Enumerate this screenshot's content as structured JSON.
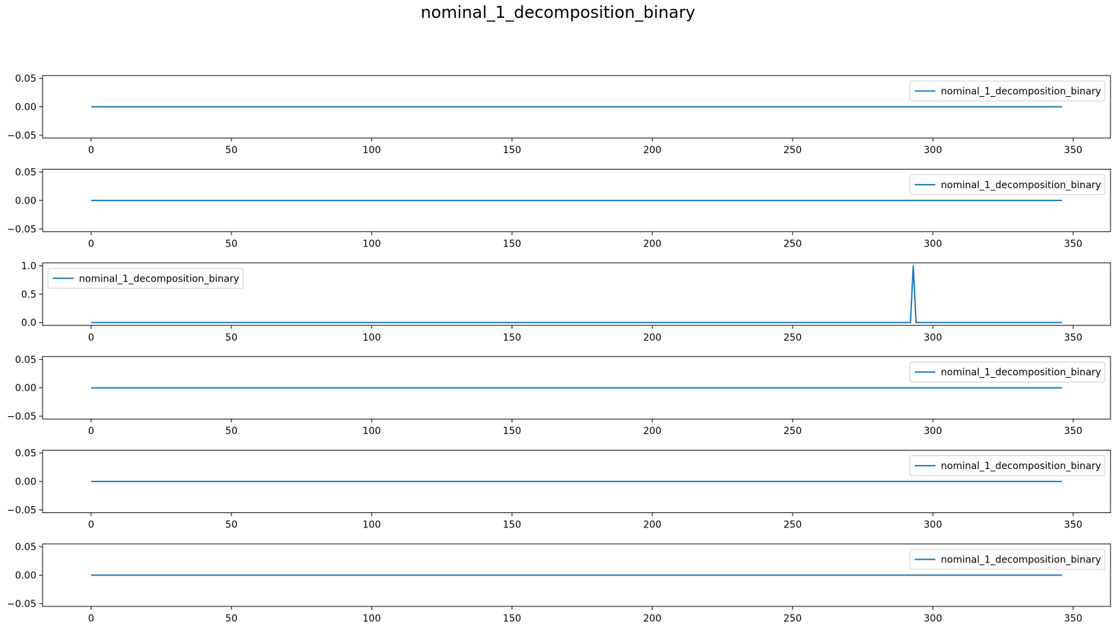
{
  "title": "nominal_1_decomposition_binary",
  "colors": {
    "line": "#1f77b4",
    "axes": "#000000",
    "background": "#ffffff"
  },
  "chart_data": [
    {
      "type": "line",
      "legend": "top-right",
      "grid": false,
      "xlim": [
        -17.3,
        363.3
      ],
      "ylim": [
        -0.055,
        0.055
      ],
      "xticks": [
        0,
        50,
        100,
        150,
        200,
        250,
        300,
        350
      ],
      "yticks": [
        -0.05,
        0.0,
        0.05
      ],
      "ytick_labels": [
        "−0.05",
        "0.00",
        "0.05"
      ],
      "series": [
        {
          "name": "nominal_1_decomposition_binary",
          "x": [
            0,
            346
          ],
          "y": [
            0,
            0
          ]
        }
      ]
    },
    {
      "type": "line",
      "legend": "top-right",
      "grid": false,
      "xlim": [
        -17.3,
        363.3
      ],
      "ylim": [
        -0.055,
        0.055
      ],
      "xticks": [
        0,
        50,
        100,
        150,
        200,
        250,
        300,
        350
      ],
      "yticks": [
        -0.05,
        0.0,
        0.05
      ],
      "ytick_labels": [
        "−0.05",
        "0.00",
        "0.05"
      ],
      "series": [
        {
          "name": "nominal_1_decomposition_binary",
          "x": [
            0,
            346
          ],
          "y": [
            0,
            0
          ]
        }
      ]
    },
    {
      "type": "line",
      "legend": "top-left",
      "grid": false,
      "xlim": [
        -17.3,
        363.3
      ],
      "ylim": [
        -0.05,
        1.05
      ],
      "xticks": [
        0,
        50,
        100,
        150,
        200,
        250,
        300,
        350
      ],
      "yticks": [
        0.0,
        0.5,
        1.0
      ],
      "ytick_labels": [
        "0.0",
        "0.5",
        "1.0"
      ],
      "series": [
        {
          "name": "nominal_1_decomposition_binary",
          "x": [
            0,
            292,
            293,
            294,
            346
          ],
          "y": [
            0,
            0,
            1,
            0,
            0
          ]
        }
      ]
    },
    {
      "type": "line",
      "legend": "top-right",
      "grid": false,
      "xlim": [
        -17.3,
        363.3
      ],
      "ylim": [
        -0.055,
        0.055
      ],
      "xticks": [
        0,
        50,
        100,
        150,
        200,
        250,
        300,
        350
      ],
      "yticks": [
        -0.05,
        0.0,
        0.05
      ],
      "ytick_labels": [
        "−0.05",
        "0.00",
        "0.05"
      ],
      "series": [
        {
          "name": "nominal_1_decomposition_binary",
          "x": [
            0,
            346
          ],
          "y": [
            0,
            0
          ]
        }
      ]
    },
    {
      "type": "line",
      "legend": "top-right",
      "grid": false,
      "xlim": [
        -17.3,
        363.3
      ],
      "ylim": [
        -0.055,
        0.055
      ],
      "xticks": [
        0,
        50,
        100,
        150,
        200,
        250,
        300,
        350
      ],
      "yticks": [
        -0.05,
        0.0,
        0.05
      ],
      "ytick_labels": [
        "−0.05",
        "0.00",
        "0.05"
      ],
      "series": [
        {
          "name": "nominal_1_decomposition_binary",
          "x": [
            0,
            346
          ],
          "y": [
            0,
            0
          ]
        }
      ]
    },
    {
      "type": "line",
      "legend": "top-right",
      "grid": false,
      "xlim": [
        -17.3,
        363.3
      ],
      "ylim": [
        -0.055,
        0.055
      ],
      "xticks": [
        0,
        50,
        100,
        150,
        200,
        250,
        300,
        350
      ],
      "yticks": [
        -0.05,
        0.0,
        0.05
      ],
      "ytick_labels": [
        "−0.05",
        "0.00",
        "0.05"
      ],
      "series": [
        {
          "name": "nominal_1_decomposition_binary",
          "x": [
            0,
            346
          ],
          "y": [
            0,
            0
          ]
        }
      ]
    }
  ]
}
